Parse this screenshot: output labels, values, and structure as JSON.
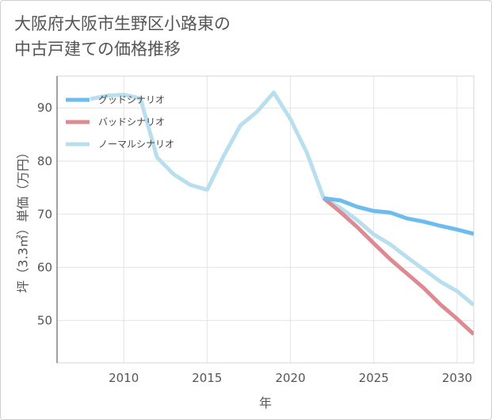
{
  "title_line1": "大阪府大阪市生野区小路東の",
  "title_line2": "中古戸建ての価格推移",
  "chart_data": {
    "type": "line",
    "title": "大阪府大阪市生野区小路東の中古戸建ての価格推移",
    "xlabel": "年",
    "ylabel": "坪（3.3㎡）単価（万円）",
    "xlim": [
      2006,
      2031
    ],
    "ylim": [
      42,
      96
    ],
    "xticks": [
      2010,
      2015,
      2020,
      2025,
      2030
    ],
    "yticks": [
      50,
      60,
      70,
      80,
      90
    ],
    "grid": true,
    "legend_position": "top-left",
    "series": [
      {
        "name": "グッドシナリオ",
        "color": "#6dbcee",
        "x": [
          2022,
          2023,
          2024,
          2025,
          2026,
          2027,
          2028,
          2029,
          2030,
          2031
        ],
        "values": [
          73,
          72.6,
          71.4,
          70.6,
          70.3,
          69.2,
          68.6,
          67.8,
          67.1,
          66.3
        ]
      },
      {
        "name": "バッドシナリオ",
        "color": "#de8a92",
        "x": [
          2022,
          2023,
          2024,
          2025,
          2026,
          2027,
          2028,
          2029,
          2030,
          2031
        ],
        "values": [
          73,
          70.4,
          67.6,
          64.5,
          61.5,
          58.8,
          56.1,
          53,
          50.3,
          47.4
        ]
      },
      {
        "name": "ノーマルシナリオ",
        "color": "#b9dfee",
        "x": [
          2008,
          2009,
          2010,
          2011,
          2012,
          2013,
          2014,
          2015,
          2016,
          2017,
          2018,
          2019,
          2020,
          2021,
          2022,
          2023,
          2024,
          2025,
          2026,
          2027,
          2028,
          2029,
          2030,
          2031
        ],
        "values": [
          91.7,
          92.3,
          92.5,
          91.8,
          80.7,
          77.5,
          75.5,
          74.6,
          81,
          86.7,
          89.3,
          92.9,
          87.9,
          81.5,
          73,
          71.2,
          68.9,
          66.2,
          64.3,
          61.9,
          59.6,
          57.3,
          55.5,
          52.9
        ]
      }
    ]
  }
}
